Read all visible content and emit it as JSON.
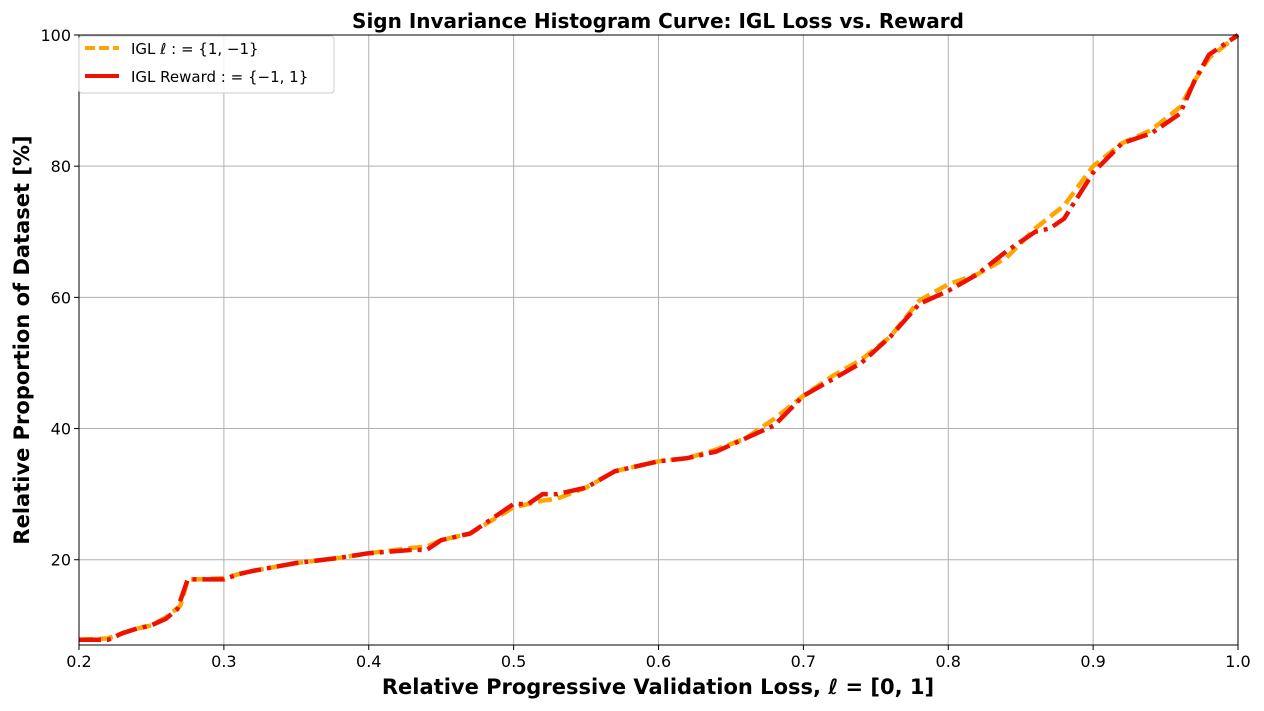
{
  "chart_data": {
    "type": "line",
    "title": "Sign Invariance Histogram Curve: IGL Loss vs. Reward",
    "xlabel": "Relative Progressive Validation Loss,  ℓ = [0, 1]",
    "ylabel": "Relative Proportion of Dataset [%]",
    "xlim": [
      0.2,
      1.0
    ],
    "ylim": [
      7,
      100
    ],
    "xticks": [
      0.2,
      0.3,
      0.4,
      0.5,
      0.6,
      0.7,
      0.8,
      0.9,
      1.0
    ],
    "xtick_labels": [
      "0.2",
      "0.3",
      "0.4",
      "0.5",
      "0.6",
      "0.7",
      "0.8",
      "0.9",
      "1.0"
    ],
    "yticks": [
      20,
      40,
      60,
      80,
      100
    ],
    "ytick_labels": [
      "20",
      "40",
      "60",
      "80",
      "100"
    ],
    "grid": true,
    "legend_position": "top-left",
    "series": [
      {
        "name": "IGL ℓ : = {1, −1}",
        "color": "#ffa500",
        "style": "dashed",
        "x": [
          0.2,
          0.22,
          0.23,
          0.24,
          0.25,
          0.26,
          0.27,
          0.275,
          0.28,
          0.3,
          0.31,
          0.32,
          0.35,
          0.38,
          0.4,
          0.43,
          0.44,
          0.45,
          0.47,
          0.5,
          0.52,
          0.53,
          0.55,
          0.57,
          0.6,
          0.62,
          0.64,
          0.66,
          0.68,
          0.7,
          0.72,
          0.74,
          0.76,
          0.78,
          0.8,
          0.82,
          0.84,
          0.86,
          0.88,
          0.9,
          0.92,
          0.94,
          0.96,
          0.97,
          0.98,
          1.0
        ],
        "y": [
          7.8,
          8.0,
          8.8,
          9.5,
          10.0,
          11.2,
          13.0,
          17.0,
          17.0,
          17.2,
          17.8,
          18.3,
          19.5,
          20.3,
          21.0,
          21.8,
          22.0,
          23.0,
          24.0,
          28.0,
          29.0,
          29.3,
          31.0,
          33.5,
          35.0,
          35.5,
          36.8,
          38.5,
          41.5,
          45.0,
          48.0,
          50.5,
          54.0,
          59.5,
          62.0,
          63.5,
          66.0,
          70.5,
          74.0,
          80.0,
          83.5,
          85.5,
          89.0,
          93.0,
          96.5,
          100.0
        ]
      },
      {
        "name": "IGL Reward  : = {−1, 1}",
        "color": "#ee1100",
        "style": "dashdot",
        "x": [
          0.2,
          0.22,
          0.23,
          0.24,
          0.25,
          0.26,
          0.268,
          0.275,
          0.28,
          0.3,
          0.31,
          0.32,
          0.35,
          0.38,
          0.4,
          0.43,
          0.44,
          0.45,
          0.47,
          0.5,
          0.51,
          0.52,
          0.53,
          0.55,
          0.57,
          0.6,
          0.62,
          0.64,
          0.66,
          0.68,
          0.7,
          0.72,
          0.74,
          0.76,
          0.78,
          0.8,
          0.82,
          0.84,
          0.86,
          0.87,
          0.88,
          0.9,
          0.92,
          0.94,
          0.96,
          0.97,
          0.98,
          1.0
        ],
        "y": [
          7.8,
          7.8,
          8.8,
          9.5,
          10.0,
          11.0,
          12.5,
          17.0,
          17.0,
          17.0,
          17.8,
          18.3,
          19.5,
          20.3,
          21.0,
          21.5,
          21.5,
          23.0,
          24.0,
          28.5,
          28.5,
          30.0,
          30.0,
          31.0,
          33.5,
          35.0,
          35.5,
          36.5,
          38.5,
          40.5,
          45.0,
          47.5,
          50.0,
          54.0,
          59.0,
          61.0,
          63.5,
          67.0,
          70.0,
          70.5,
          72.0,
          79.0,
          83.5,
          85.0,
          88.0,
          93.0,
          97.0,
          100.0
        ]
      }
    ]
  }
}
